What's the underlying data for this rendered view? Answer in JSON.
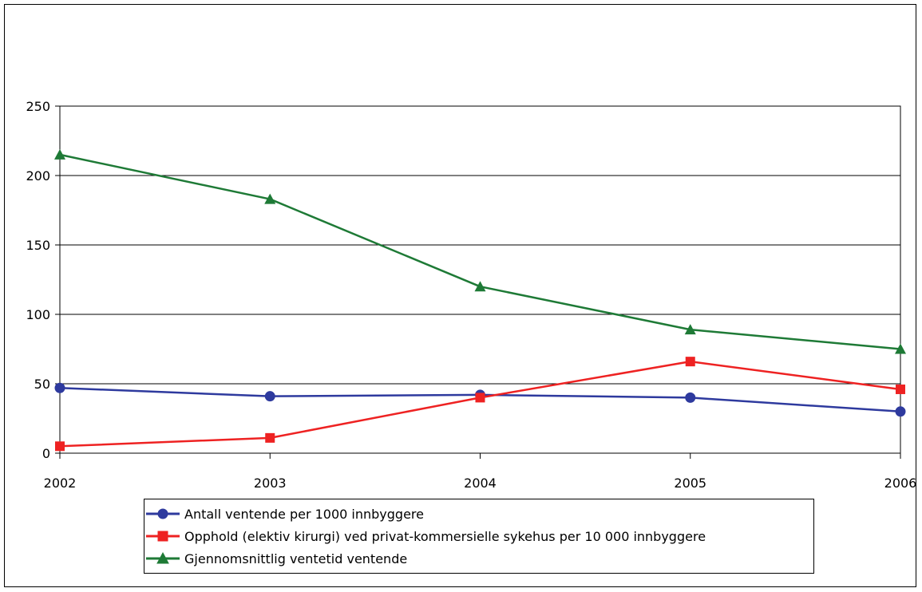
{
  "chart_data": {
    "type": "line",
    "x": [
      "2002",
      "2003",
      "2004",
      "2005",
      "2006"
    ],
    "ylim": [
      0,
      250
    ],
    "yticks": [
      "0",
      "50",
      "100",
      "150",
      "200",
      "250"
    ],
    "grid": true,
    "legend_position": "bottom",
    "series": [
      {
        "name": "Antall ventende per 1000  innbyggere",
        "values": [
          47,
          41,
          42,
          40,
          30
        ],
        "color": "#2E3A9E",
        "marker": "circle"
      },
      {
        "name": "Opphold (elektiv kirurgi) ved privat-kommersielle sykehus per 10 000 innbyggere",
        "values": [
          5,
          11,
          40,
          66,
          46
        ],
        "color": "#EE2222",
        "marker": "square"
      },
      {
        "name": "Gjennomsnittlig ventetid ventende",
        "values": [
          215,
          183,
          120,
          89,
          75
        ],
        "color": "#1E7A36",
        "marker": "triangle"
      }
    ]
  }
}
